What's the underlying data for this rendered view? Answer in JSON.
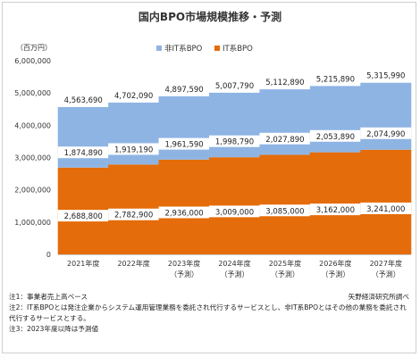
{
  "page": {
    "title": "国内BPO市場規模推移・予測",
    "source": "矢野経済研究所調べ",
    "notes": [
      "注1：事業者売上高ベース",
      "注2：IT系BPOとは発注企業からシステム運用管理業務を委託され代行するサービスとし、非IT系BPOとはその他の業務を委託され",
      "代行するサービスとする。",
      "注3：2023年度以降は予測値"
    ]
  },
  "colors": {
    "it": "#e46c0a",
    "non_it": "#8eb4e3"
  },
  "chart_data": {
    "type": "bar",
    "stacked": true,
    "unit_label": "（百万円）",
    "categories": [
      [
        "2021年度"
      ],
      [
        "2022年度"
      ],
      [
        "2023年度",
        "（予測）"
      ],
      [
        "2024年度",
        "（予測）"
      ],
      [
        "2025年度",
        "（予測）"
      ],
      [
        "2026年度",
        "（予測）"
      ],
      [
        "2027年度",
        "（予測）"
      ]
    ],
    "series": [
      {
        "name": "IT系BPO",
        "values": [
          2688800,
          2782900,
          2936000,
          3009000,
          3085000,
          3162000,
          3241000
        ],
        "labels": [
          "2,688,800",
          "2,782,900",
          "2,936,000",
          "3,009,000",
          "3,085,000",
          "3,162,000",
          "3,241,000"
        ]
      },
      {
        "name": "非IT系BPO",
        "values": [
          1874890,
          1919190,
          1961590,
          1998790,
          2027890,
          2053890,
          2074990
        ],
        "labels": [
          "1,874,890",
          "1,919,190",
          "1,961,590",
          "1,998,790",
          "2,027,890",
          "2,053,890",
          "2,074,990"
        ]
      }
    ],
    "totals": [
      4563690,
      4702090,
      4897590,
      5007790,
      5112890,
      5215890,
      5315990
    ],
    "total_labels": [
      "4,563,690",
      "4,702,090",
      "4,897,590",
      "5,007,790",
      "5,112,890",
      "5,215,890",
      "5,315,990"
    ],
    "ylim": [
      0,
      6000000
    ],
    "yticks": [
      0,
      1000000,
      2000000,
      3000000,
      4000000,
      5000000,
      6000000
    ],
    "ytick_labels": [
      "0",
      "1,000,000",
      "2,000,000",
      "3,000,000",
      "4,000,000",
      "5,000,000",
      "6,000,000"
    ],
    "legend_placement": "top",
    "grid": false
  }
}
